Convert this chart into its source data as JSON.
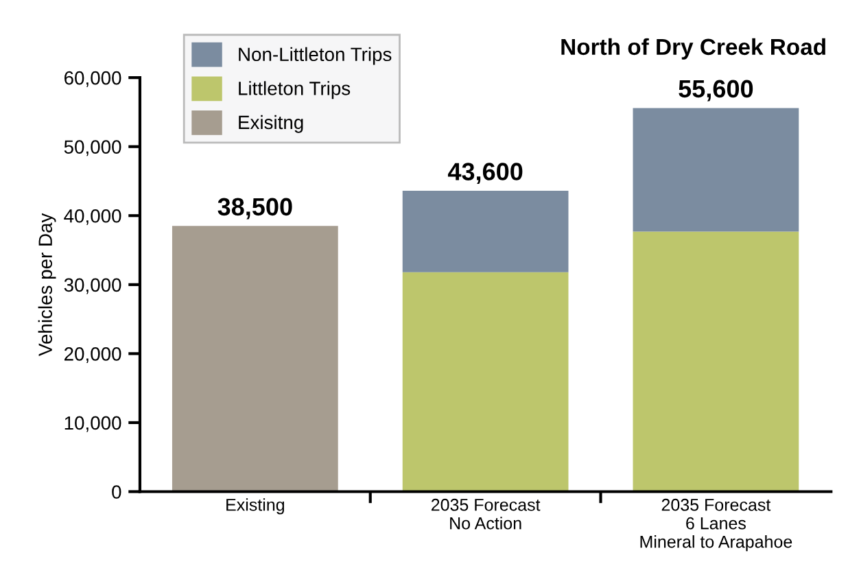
{
  "chart_data": {
    "type": "bar",
    "stacked": true,
    "title": "North of Dry Creek Road",
    "ylabel": "Vehicles per Day",
    "categories": [
      "Existing",
      "2035 Forecast\nNo Action",
      "2035 Forecast\n6 Lanes\nMineral to Arapahoe"
    ],
    "series": [
      {
        "name": "Exisitng",
        "color": "#a69d90",
        "values": [
          38500,
          null,
          null
        ]
      },
      {
        "name": "Littleton Trips",
        "color": "#bdc66c",
        "values": [
          null,
          31800,
          37700
        ]
      },
      {
        "name": "Non-Littleton Trips",
        "color": "#7b8ca0",
        "values": [
          null,
          11800,
          17900
        ]
      }
    ],
    "totals": [
      "38,500",
      "43,600",
      "55,600"
    ],
    "ylim": [
      0,
      60000
    ],
    "yticks": [
      {
        "value": 0,
        "label": "0"
      },
      {
        "value": 10000,
        "label": "10,000"
      },
      {
        "value": 20000,
        "label": "20,000"
      },
      {
        "value": 30000,
        "label": "30,000"
      },
      {
        "value": 40000,
        "label": "40,000"
      },
      {
        "value": 50000,
        "label": "50,000"
      },
      {
        "value": 60000,
        "label": "60,000"
      }
    ],
    "grid": false,
    "legend": "top left"
  }
}
